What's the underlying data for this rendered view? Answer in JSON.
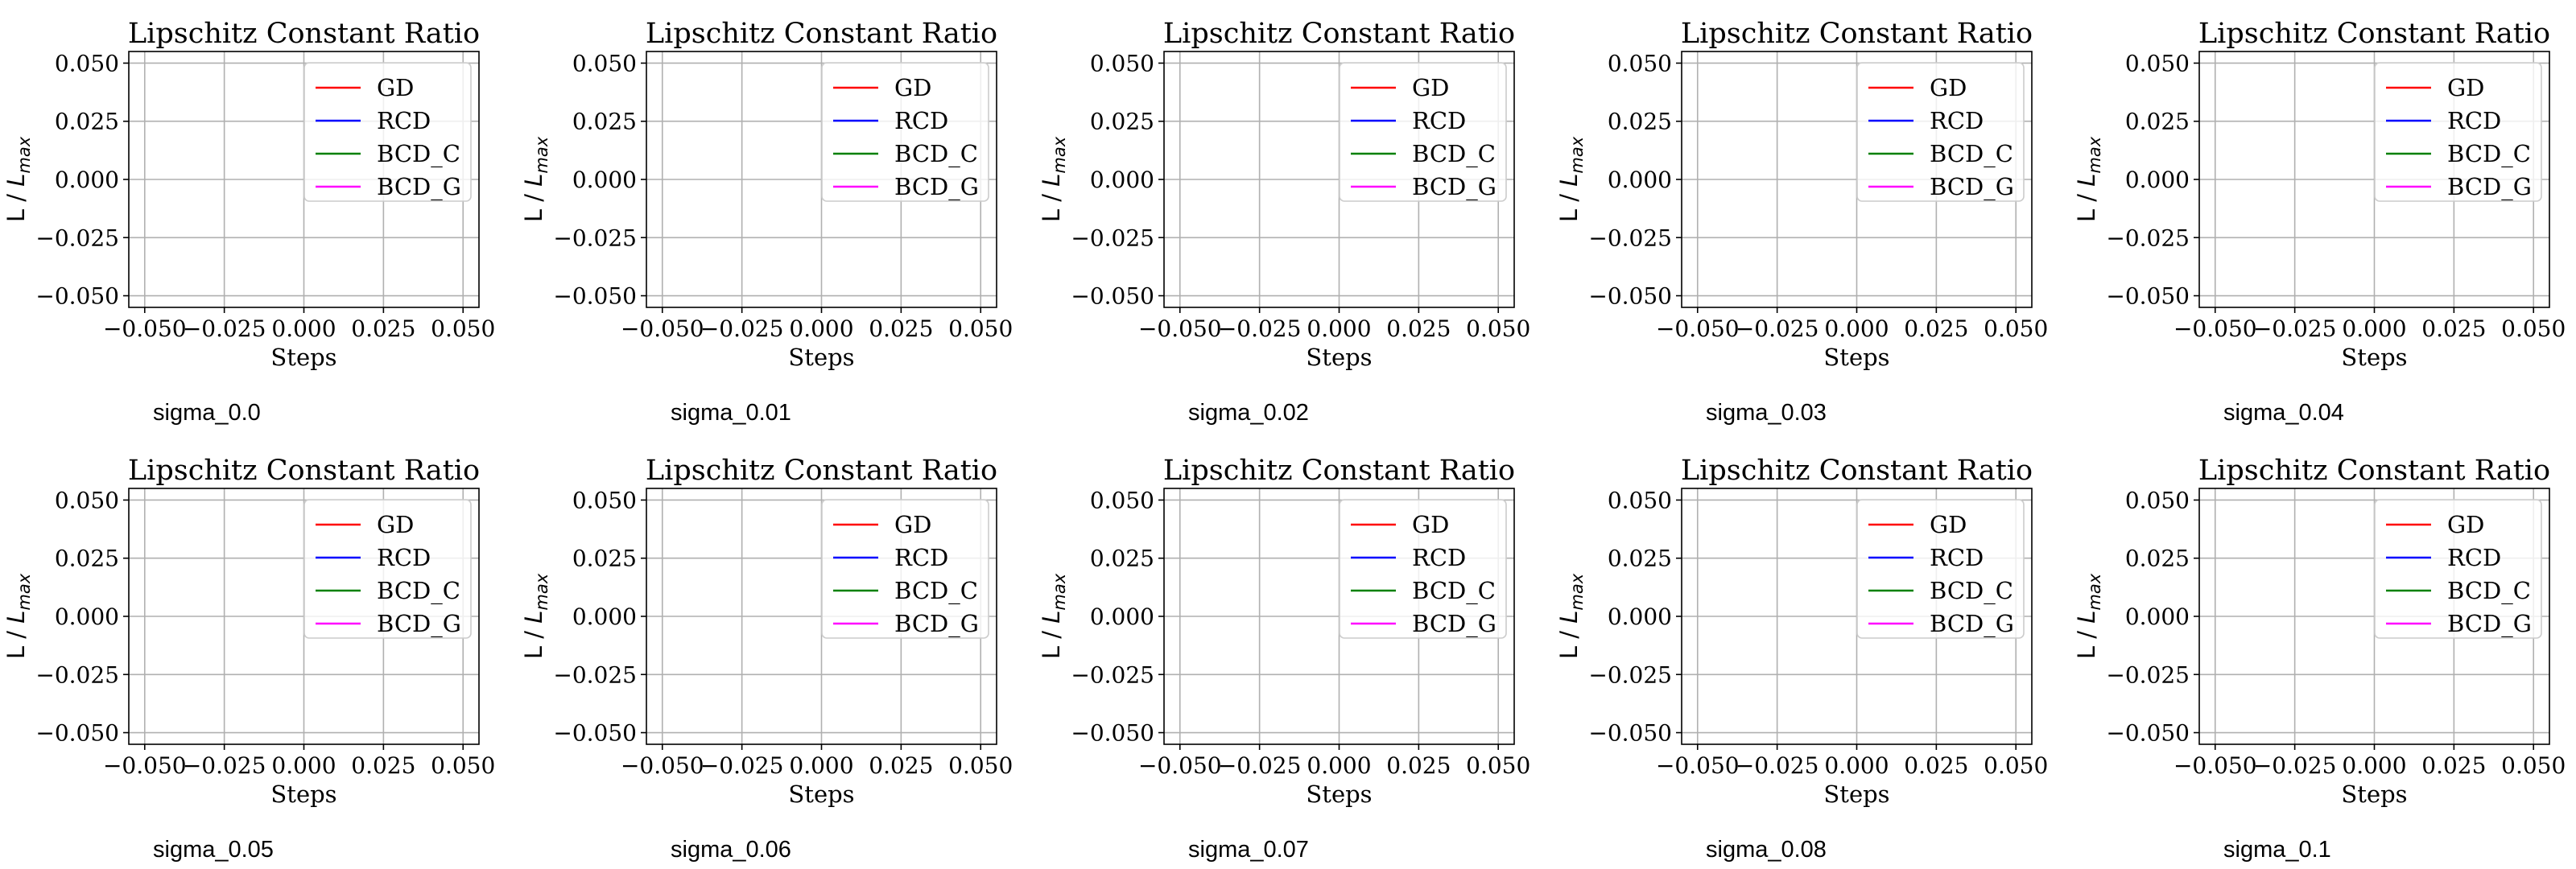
{
  "chart_data": [
    {
      "type": "line",
      "title": "Lipschitz Constant Ratio",
      "xlabel": "Steps",
      "ylabel_text": "L / ",
      "ylabel_math_base": "L",
      "ylabel_math_sub": "max",
      "caption": "sigma_0.0",
      "xlim": [
        -0.055,
        0.055
      ],
      "ylim": [
        -0.055,
        0.055
      ],
      "xticks": [
        -0.05,
        -0.025,
        0.0,
        0.025,
        0.05
      ],
      "yticks": [
        -0.05,
        -0.025,
        0.0,
        0.025,
        0.05
      ],
      "xtick_labels": [
        "−0.050",
        "−0.025",
        "0.000",
        "0.025",
        "0.050"
      ],
      "ytick_labels": [
        "−0.050",
        "−0.025",
        "0.000",
        "0.025",
        "0.050"
      ],
      "grid": true,
      "legend_position": "upper right",
      "series": [
        {
          "name": "GD",
          "color": "#ff0000",
          "x": [],
          "y": []
        },
        {
          "name": "RCD",
          "color": "#0000ff",
          "x": [],
          "y": []
        },
        {
          "name": "BCD_C",
          "color": "#008000",
          "x": [],
          "y": []
        },
        {
          "name": "BCD_G",
          "color": "#ff00ff",
          "x": [],
          "y": []
        }
      ]
    },
    {
      "type": "line",
      "title": "Lipschitz Constant Ratio",
      "xlabel": "Steps",
      "ylabel_text": "L / ",
      "ylabel_math_base": "L",
      "ylabel_math_sub": "max",
      "caption": "sigma_0.01",
      "xlim": [
        -0.055,
        0.055
      ],
      "ylim": [
        -0.055,
        0.055
      ],
      "xticks": [
        -0.05,
        -0.025,
        0.0,
        0.025,
        0.05
      ],
      "yticks": [
        -0.05,
        -0.025,
        0.0,
        0.025,
        0.05
      ],
      "xtick_labels": [
        "−0.050",
        "−0.025",
        "0.000",
        "0.025",
        "0.050"
      ],
      "ytick_labels": [
        "−0.050",
        "−0.025",
        "0.000",
        "0.025",
        "0.050"
      ],
      "grid": true,
      "legend_position": "upper right",
      "series": [
        {
          "name": "GD",
          "color": "#ff0000",
          "x": [],
          "y": []
        },
        {
          "name": "RCD",
          "color": "#0000ff",
          "x": [],
          "y": []
        },
        {
          "name": "BCD_C",
          "color": "#008000",
          "x": [],
          "y": []
        },
        {
          "name": "BCD_G",
          "color": "#ff00ff",
          "x": [],
          "y": []
        }
      ]
    },
    {
      "type": "line",
      "title": "Lipschitz Constant Ratio",
      "xlabel": "Steps",
      "ylabel_text": "L / ",
      "ylabel_math_base": "L",
      "ylabel_math_sub": "max",
      "caption": "sigma_0.02",
      "xlim": [
        -0.055,
        0.055
      ],
      "ylim": [
        -0.055,
        0.055
      ],
      "xticks": [
        -0.05,
        -0.025,
        0.0,
        0.025,
        0.05
      ],
      "yticks": [
        -0.05,
        -0.025,
        0.0,
        0.025,
        0.05
      ],
      "xtick_labels": [
        "−0.050",
        "−0.025",
        "0.000",
        "0.025",
        "0.050"
      ],
      "ytick_labels": [
        "−0.050",
        "−0.025",
        "0.000",
        "0.025",
        "0.050"
      ],
      "grid": true,
      "legend_position": "upper right",
      "series": [
        {
          "name": "GD",
          "color": "#ff0000",
          "x": [],
          "y": []
        },
        {
          "name": "RCD",
          "color": "#0000ff",
          "x": [],
          "y": []
        },
        {
          "name": "BCD_C",
          "color": "#008000",
          "x": [],
          "y": []
        },
        {
          "name": "BCD_G",
          "color": "#ff00ff",
          "x": [],
          "y": []
        }
      ]
    },
    {
      "type": "line",
      "title": "Lipschitz Constant Ratio",
      "xlabel": "Steps",
      "ylabel_text": "L / ",
      "ylabel_math_base": "L",
      "ylabel_math_sub": "max",
      "caption": "sigma_0.03",
      "xlim": [
        -0.055,
        0.055
      ],
      "ylim": [
        -0.055,
        0.055
      ],
      "xticks": [
        -0.05,
        -0.025,
        0.0,
        0.025,
        0.05
      ],
      "yticks": [
        -0.05,
        -0.025,
        0.0,
        0.025,
        0.05
      ],
      "xtick_labels": [
        "−0.050",
        "−0.025",
        "0.000",
        "0.025",
        "0.050"
      ],
      "ytick_labels": [
        "−0.050",
        "−0.025",
        "0.000",
        "0.025",
        "0.050"
      ],
      "grid": true,
      "legend_position": "upper right",
      "series": [
        {
          "name": "GD",
          "color": "#ff0000",
          "x": [],
          "y": []
        },
        {
          "name": "RCD",
          "color": "#0000ff",
          "x": [],
          "y": []
        },
        {
          "name": "BCD_C",
          "color": "#008000",
          "x": [],
          "y": []
        },
        {
          "name": "BCD_G",
          "color": "#ff00ff",
          "x": [],
          "y": []
        }
      ]
    },
    {
      "type": "line",
      "title": "Lipschitz Constant Ratio",
      "xlabel": "Steps",
      "ylabel_text": "L / ",
      "ylabel_math_base": "L",
      "ylabel_math_sub": "max",
      "caption": "sigma_0.04",
      "xlim": [
        -0.055,
        0.055
      ],
      "ylim": [
        -0.055,
        0.055
      ],
      "xticks": [
        -0.05,
        -0.025,
        0.0,
        0.025,
        0.05
      ],
      "yticks": [
        -0.05,
        -0.025,
        0.0,
        0.025,
        0.05
      ],
      "xtick_labels": [
        "−0.050",
        "−0.025",
        "0.000",
        "0.025",
        "0.050"
      ],
      "ytick_labels": [
        "−0.050",
        "−0.025",
        "0.000",
        "0.025",
        "0.050"
      ],
      "grid": true,
      "legend_position": "upper right",
      "series": [
        {
          "name": "GD",
          "color": "#ff0000",
          "x": [],
          "y": []
        },
        {
          "name": "RCD",
          "color": "#0000ff",
          "x": [],
          "y": []
        },
        {
          "name": "BCD_C",
          "color": "#008000",
          "x": [],
          "y": []
        },
        {
          "name": "BCD_G",
          "color": "#ff00ff",
          "x": [],
          "y": []
        }
      ]
    },
    {
      "type": "line",
      "title": "Lipschitz Constant Ratio",
      "xlabel": "Steps",
      "ylabel_text": "L / ",
      "ylabel_math_base": "L",
      "ylabel_math_sub": "max",
      "caption": "sigma_0.05",
      "xlim": [
        -0.055,
        0.055
      ],
      "ylim": [
        -0.055,
        0.055
      ],
      "xticks": [
        -0.05,
        -0.025,
        0.0,
        0.025,
        0.05
      ],
      "yticks": [
        -0.05,
        -0.025,
        0.0,
        0.025,
        0.05
      ],
      "xtick_labels": [
        "−0.050",
        "−0.025",
        "0.000",
        "0.025",
        "0.050"
      ],
      "ytick_labels": [
        "−0.050",
        "−0.025",
        "0.000",
        "0.025",
        "0.050"
      ],
      "grid": true,
      "legend_position": "upper right",
      "series": [
        {
          "name": "GD",
          "color": "#ff0000",
          "x": [],
          "y": []
        },
        {
          "name": "RCD",
          "color": "#0000ff",
          "x": [],
          "y": []
        },
        {
          "name": "BCD_C",
          "color": "#008000",
          "x": [],
          "y": []
        },
        {
          "name": "BCD_G",
          "color": "#ff00ff",
          "x": [],
          "y": []
        }
      ]
    },
    {
      "type": "line",
      "title": "Lipschitz Constant Ratio",
      "xlabel": "Steps",
      "ylabel_text": "L / ",
      "ylabel_math_base": "L",
      "ylabel_math_sub": "max",
      "caption": "sigma_0.06",
      "xlim": [
        -0.055,
        0.055
      ],
      "ylim": [
        -0.055,
        0.055
      ],
      "xticks": [
        -0.05,
        -0.025,
        0.0,
        0.025,
        0.05
      ],
      "yticks": [
        -0.05,
        -0.025,
        0.0,
        0.025,
        0.05
      ],
      "xtick_labels": [
        "−0.050",
        "−0.025",
        "0.000",
        "0.025",
        "0.050"
      ],
      "ytick_labels": [
        "−0.050",
        "−0.025",
        "0.000",
        "0.025",
        "0.050"
      ],
      "grid": true,
      "legend_position": "upper right",
      "series": [
        {
          "name": "GD",
          "color": "#ff0000",
          "x": [],
          "y": []
        },
        {
          "name": "RCD",
          "color": "#0000ff",
          "x": [],
          "y": []
        },
        {
          "name": "BCD_C",
          "color": "#008000",
          "x": [],
          "y": []
        },
        {
          "name": "BCD_G",
          "color": "#ff00ff",
          "x": [],
          "y": []
        }
      ]
    },
    {
      "type": "line",
      "title": "Lipschitz Constant Ratio",
      "xlabel": "Steps",
      "ylabel_text": "L / ",
      "ylabel_math_base": "L",
      "ylabel_math_sub": "max",
      "caption": "sigma_0.07",
      "xlim": [
        -0.055,
        0.055
      ],
      "ylim": [
        -0.055,
        0.055
      ],
      "xticks": [
        -0.05,
        -0.025,
        0.0,
        0.025,
        0.05
      ],
      "yticks": [
        -0.05,
        -0.025,
        0.0,
        0.025,
        0.05
      ],
      "xtick_labels": [
        "−0.050",
        "−0.025",
        "0.000",
        "0.025",
        "0.050"
      ],
      "ytick_labels": [
        "−0.050",
        "−0.025",
        "0.000",
        "0.025",
        "0.050"
      ],
      "grid": true,
      "legend_position": "upper right",
      "series": [
        {
          "name": "GD",
          "color": "#ff0000",
          "x": [],
          "y": []
        },
        {
          "name": "RCD",
          "color": "#0000ff",
          "x": [],
          "y": []
        },
        {
          "name": "BCD_C",
          "color": "#008000",
          "x": [],
          "y": []
        },
        {
          "name": "BCD_G",
          "color": "#ff00ff",
          "x": [],
          "y": []
        }
      ]
    },
    {
      "type": "line",
      "title": "Lipschitz Constant Ratio",
      "xlabel": "Steps",
      "ylabel_text": "L / ",
      "ylabel_math_base": "L",
      "ylabel_math_sub": "max",
      "caption": "sigma_0.08",
      "xlim": [
        -0.055,
        0.055
      ],
      "ylim": [
        -0.055,
        0.055
      ],
      "xticks": [
        -0.05,
        -0.025,
        0.0,
        0.025,
        0.05
      ],
      "yticks": [
        -0.05,
        -0.025,
        0.0,
        0.025,
        0.05
      ],
      "xtick_labels": [
        "−0.050",
        "−0.025",
        "0.000",
        "0.025",
        "0.050"
      ],
      "ytick_labels": [
        "−0.050",
        "−0.025",
        "0.000",
        "0.025",
        "0.050"
      ],
      "grid": true,
      "legend_position": "upper right",
      "series": [
        {
          "name": "GD",
          "color": "#ff0000",
          "x": [],
          "y": []
        },
        {
          "name": "RCD",
          "color": "#0000ff",
          "x": [],
          "y": []
        },
        {
          "name": "BCD_C",
          "color": "#008000",
          "x": [],
          "y": []
        },
        {
          "name": "BCD_G",
          "color": "#ff00ff",
          "x": [],
          "y": []
        }
      ]
    },
    {
      "type": "line",
      "title": "Lipschitz Constant Ratio",
      "xlabel": "Steps",
      "ylabel_text": "L / ",
      "ylabel_math_base": "L",
      "ylabel_math_sub": "max",
      "caption": "sigma_0.1",
      "xlim": [
        -0.055,
        0.055
      ],
      "ylim": [
        -0.055,
        0.055
      ],
      "xticks": [
        -0.05,
        -0.025,
        0.0,
        0.025,
        0.05
      ],
      "yticks": [
        -0.05,
        -0.025,
        0.0,
        0.025,
        0.05
      ],
      "xtick_labels": [
        "−0.050",
        "−0.025",
        "0.000",
        "0.025",
        "0.050"
      ],
      "ytick_labels": [
        "−0.050",
        "−0.025",
        "0.000",
        "0.025",
        "0.050"
      ],
      "grid": true,
      "legend_position": "upper right",
      "series": [
        {
          "name": "GD",
          "color": "#ff0000",
          "x": [],
          "y": []
        },
        {
          "name": "RCD",
          "color": "#0000ff",
          "x": [],
          "y": []
        },
        {
          "name": "BCD_C",
          "color": "#008000",
          "x": [],
          "y": []
        },
        {
          "name": "BCD_G",
          "color": "#ff00ff",
          "x": [],
          "y": []
        }
      ]
    }
  ]
}
